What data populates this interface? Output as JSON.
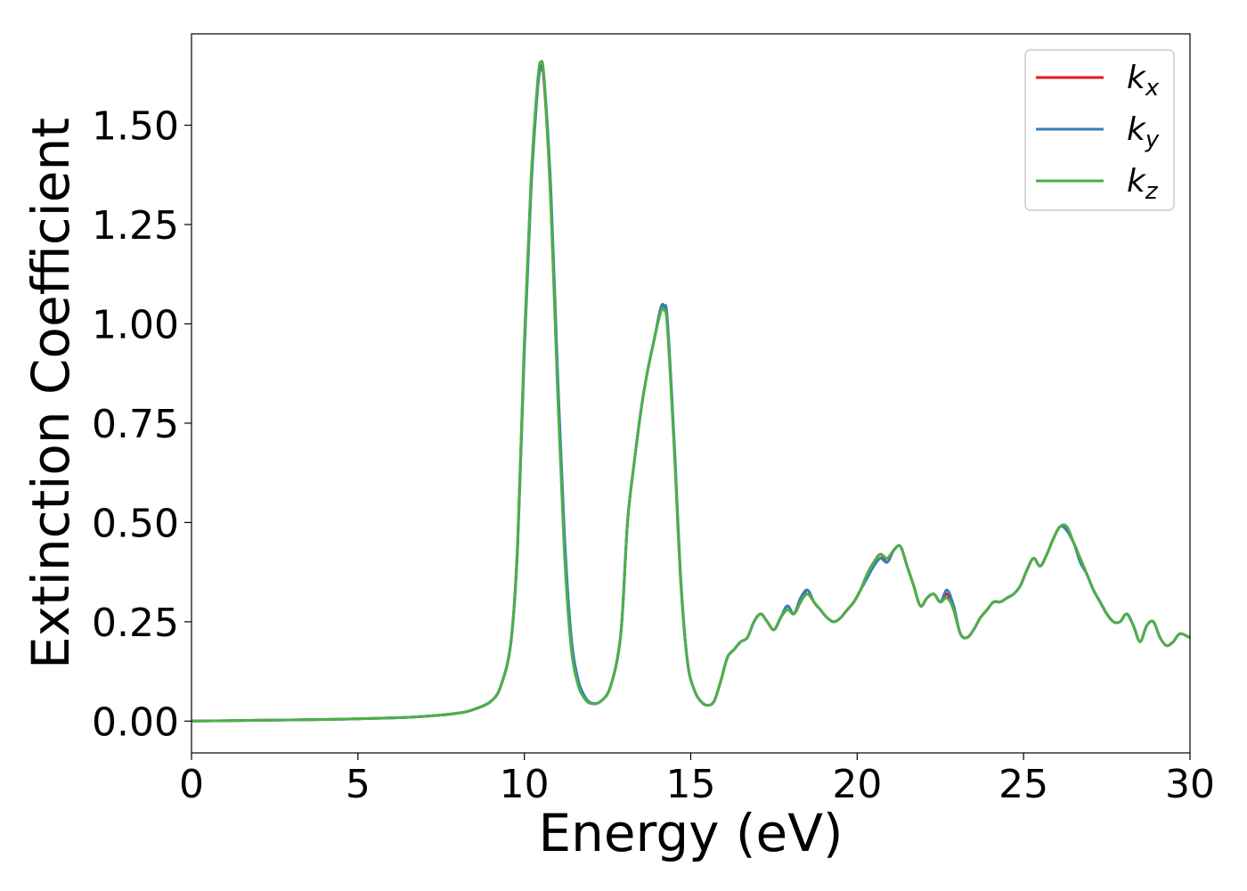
{
  "chart_data": {
    "type": "line",
    "title": "",
    "xlabel": "Energy (eV)",
    "ylabel": "Extinction Coefficient",
    "xlim": [
      0,
      30
    ],
    "ylim": [
      -0.08,
      1.73
    ],
    "xticks": [
      0,
      5,
      10,
      15,
      20,
      25,
      30
    ],
    "xtick_labels": [
      "0",
      "5",
      "10",
      "15",
      "20",
      "25",
      "30"
    ],
    "yticks": [
      0.0,
      0.25,
      0.5,
      0.75,
      1.0,
      1.25,
      1.5
    ],
    "ytick_labels": [
      "0.00",
      "0.25",
      "0.50",
      "0.75",
      "1.00",
      "1.25",
      "1.50"
    ],
    "grid": false,
    "legend": {
      "position": "top-right"
    },
    "series": [
      {
        "name": "k",
        "subscript": "x",
        "color": "#e41a1c",
        "x": [
          0,
          2,
          4,
          6,
          7,
          8,
          8.5,
          9,
          9.3,
          9.6,
          9.8,
          10.0,
          10.2,
          10.4,
          10.5,
          10.6,
          10.8,
          11.0,
          11.2,
          11.4,
          11.6,
          11.8,
          12.0,
          12.3,
          12.6,
          12.9,
          13.1,
          13.3,
          13.5,
          13.7,
          13.9,
          14.1,
          14.2,
          14.3,
          14.5,
          14.7,
          14.9,
          15.1,
          15.3,
          15.5,
          15.7,
          15.9,
          16.1,
          16.3,
          16.5,
          16.7,
          16.9,
          17.1,
          17.3,
          17.5,
          17.7,
          17.9,
          18.1,
          18.3,
          18.5,
          18.7,
          18.9,
          19.1,
          19.3,
          19.5,
          19.7,
          19.9,
          20.1,
          20.3,
          20.5,
          20.7,
          20.9,
          21.1,
          21.3,
          21.5,
          21.7,
          21.9,
          22.1,
          22.3,
          22.5,
          22.7,
          22.9,
          23.1,
          23.3,
          23.5,
          23.7,
          23.9,
          24.1,
          24.3,
          24.5,
          24.7,
          24.9,
          25.1,
          25.3,
          25.5,
          25.7,
          25.9,
          26.1,
          26.3,
          26.5,
          26.7,
          26.9,
          27.1,
          27.3,
          27.5,
          27.7,
          27.9,
          28.1,
          28.3,
          28.5,
          28.7,
          28.9,
          29.1,
          29.3,
          29.5,
          29.7,
          30.0
        ],
        "y": [
          0.0,
          0.002,
          0.004,
          0.008,
          0.012,
          0.02,
          0.03,
          0.05,
          0.09,
          0.2,
          0.45,
          0.95,
          1.35,
          1.6,
          1.65,
          1.6,
          1.3,
          0.85,
          0.45,
          0.2,
          0.1,
          0.06,
          0.045,
          0.05,
          0.09,
          0.22,
          0.5,
          0.65,
          0.78,
          0.88,
          0.96,
          1.04,
          1.04,
          1.0,
          0.7,
          0.35,
          0.15,
          0.08,
          0.05,
          0.04,
          0.05,
          0.1,
          0.16,
          0.18,
          0.2,
          0.21,
          0.25,
          0.27,
          0.25,
          0.23,
          0.26,
          0.29,
          0.27,
          0.3,
          0.33,
          0.3,
          0.28,
          0.26,
          0.25,
          0.26,
          0.28,
          0.3,
          0.33,
          0.37,
          0.4,
          0.42,
          0.4,
          0.43,
          0.44,
          0.39,
          0.34,
          0.29,
          0.31,
          0.32,
          0.3,
          0.32,
          0.28,
          0.22,
          0.21,
          0.23,
          0.26,
          0.28,
          0.3,
          0.3,
          0.31,
          0.32,
          0.34,
          0.38,
          0.41,
          0.39,
          0.42,
          0.46,
          0.49,
          0.48,
          0.45,
          0.41,
          0.37,
          0.33,
          0.3,
          0.27,
          0.25,
          0.25,
          0.27,
          0.24,
          0.2,
          0.24,
          0.25,
          0.21,
          0.19,
          0.2,
          0.22,
          0.21
        ]
      },
      {
        "name": "k",
        "subscript": "y",
        "color": "#377eb8",
        "x": [
          0,
          2,
          4,
          6,
          7,
          8,
          8.5,
          9,
          9.3,
          9.6,
          9.8,
          10.0,
          10.2,
          10.4,
          10.5,
          10.6,
          10.8,
          11.0,
          11.2,
          11.4,
          11.6,
          11.8,
          12.0,
          12.3,
          12.6,
          12.9,
          13.1,
          13.3,
          13.5,
          13.7,
          13.9,
          14.1,
          14.2,
          14.3,
          14.5,
          14.7,
          14.9,
          15.1,
          15.3,
          15.5,
          15.7,
          15.9,
          16.1,
          16.3,
          16.5,
          16.7,
          16.9,
          17.1,
          17.3,
          17.5,
          17.7,
          17.9,
          18.1,
          18.3,
          18.5,
          18.7,
          18.9,
          19.1,
          19.3,
          19.5,
          19.7,
          19.9,
          20.1,
          20.3,
          20.5,
          20.7,
          20.9,
          21.1,
          21.3,
          21.5,
          21.7,
          21.9,
          22.1,
          22.3,
          22.5,
          22.7,
          22.9,
          23.1,
          23.3,
          23.5,
          23.7,
          23.9,
          24.1,
          24.3,
          24.5,
          24.7,
          24.9,
          25.1,
          25.3,
          25.5,
          25.7,
          25.9,
          26.1,
          26.3,
          26.5,
          26.7,
          26.9,
          27.1,
          27.3,
          27.5,
          27.7,
          27.9,
          28.1,
          28.3,
          28.5,
          28.7,
          28.9,
          29.1,
          29.3,
          29.5,
          29.7,
          30.0
        ],
        "y": [
          0.0,
          0.002,
          0.004,
          0.008,
          0.012,
          0.02,
          0.03,
          0.05,
          0.09,
          0.2,
          0.44,
          0.93,
          1.33,
          1.59,
          1.64,
          1.61,
          1.33,
          0.88,
          0.48,
          0.22,
          0.11,
          0.065,
          0.046,
          0.05,
          0.09,
          0.22,
          0.5,
          0.65,
          0.78,
          0.88,
          0.96,
          1.04,
          1.045,
          1.01,
          0.71,
          0.36,
          0.15,
          0.08,
          0.05,
          0.04,
          0.05,
          0.1,
          0.16,
          0.18,
          0.2,
          0.21,
          0.25,
          0.27,
          0.25,
          0.23,
          0.26,
          0.29,
          0.27,
          0.31,
          0.33,
          0.3,
          0.28,
          0.26,
          0.25,
          0.26,
          0.28,
          0.3,
          0.33,
          0.36,
          0.39,
          0.41,
          0.4,
          0.43,
          0.44,
          0.39,
          0.34,
          0.29,
          0.31,
          0.32,
          0.3,
          0.33,
          0.29,
          0.22,
          0.21,
          0.23,
          0.26,
          0.28,
          0.3,
          0.3,
          0.31,
          0.32,
          0.34,
          0.38,
          0.41,
          0.39,
          0.42,
          0.46,
          0.49,
          0.48,
          0.45,
          0.4,
          0.37,
          0.33,
          0.3,
          0.27,
          0.25,
          0.25,
          0.27,
          0.24,
          0.2,
          0.24,
          0.25,
          0.21,
          0.19,
          0.2,
          0.22,
          0.21
        ]
      },
      {
        "name": "k",
        "subscript": "z",
        "color": "#4daf4a",
        "x": [
          0,
          2,
          4,
          6,
          7,
          8,
          8.5,
          9,
          9.3,
          9.6,
          9.8,
          10.0,
          10.2,
          10.4,
          10.5,
          10.6,
          10.8,
          11.0,
          11.2,
          11.4,
          11.6,
          11.8,
          12.0,
          12.3,
          12.6,
          12.9,
          13.1,
          13.3,
          13.5,
          13.7,
          13.9,
          14.1,
          14.2,
          14.3,
          14.5,
          14.7,
          14.9,
          15.1,
          15.3,
          15.5,
          15.7,
          15.9,
          16.1,
          16.3,
          16.5,
          16.7,
          16.9,
          17.1,
          17.3,
          17.5,
          17.7,
          17.9,
          18.1,
          18.3,
          18.5,
          18.7,
          18.9,
          19.1,
          19.3,
          19.5,
          19.7,
          19.9,
          20.1,
          20.3,
          20.5,
          20.7,
          20.9,
          21.1,
          21.3,
          21.5,
          21.7,
          21.9,
          22.1,
          22.3,
          22.5,
          22.7,
          22.9,
          23.1,
          23.3,
          23.5,
          23.7,
          23.9,
          24.1,
          24.3,
          24.5,
          24.7,
          24.9,
          25.1,
          25.3,
          25.5,
          25.7,
          25.9,
          26.1,
          26.3,
          26.5,
          26.7,
          26.9,
          27.1,
          27.3,
          27.5,
          27.7,
          27.9,
          28.1,
          28.3,
          28.5,
          28.7,
          28.9,
          29.1,
          29.3,
          29.5,
          29.7,
          30.0
        ],
        "y": [
          0.0,
          0.002,
          0.004,
          0.008,
          0.012,
          0.02,
          0.03,
          0.05,
          0.09,
          0.2,
          0.45,
          0.96,
          1.36,
          1.61,
          1.66,
          1.61,
          1.29,
          0.83,
          0.43,
          0.19,
          0.095,
          0.058,
          0.044,
          0.05,
          0.09,
          0.22,
          0.5,
          0.65,
          0.78,
          0.88,
          0.96,
          1.03,
          1.035,
          0.99,
          0.69,
          0.35,
          0.15,
          0.08,
          0.05,
          0.04,
          0.05,
          0.1,
          0.16,
          0.18,
          0.2,
          0.21,
          0.25,
          0.27,
          0.25,
          0.23,
          0.26,
          0.28,
          0.27,
          0.3,
          0.32,
          0.3,
          0.28,
          0.26,
          0.25,
          0.26,
          0.28,
          0.3,
          0.33,
          0.37,
          0.4,
          0.42,
          0.41,
          0.43,
          0.44,
          0.39,
          0.34,
          0.29,
          0.31,
          0.32,
          0.3,
          0.31,
          0.28,
          0.22,
          0.21,
          0.23,
          0.26,
          0.28,
          0.3,
          0.3,
          0.31,
          0.32,
          0.34,
          0.38,
          0.41,
          0.39,
          0.42,
          0.46,
          0.49,
          0.49,
          0.45,
          0.41,
          0.37,
          0.33,
          0.3,
          0.27,
          0.25,
          0.25,
          0.27,
          0.24,
          0.2,
          0.24,
          0.25,
          0.21,
          0.19,
          0.2,
          0.22,
          0.21
        ]
      }
    ]
  }
}
